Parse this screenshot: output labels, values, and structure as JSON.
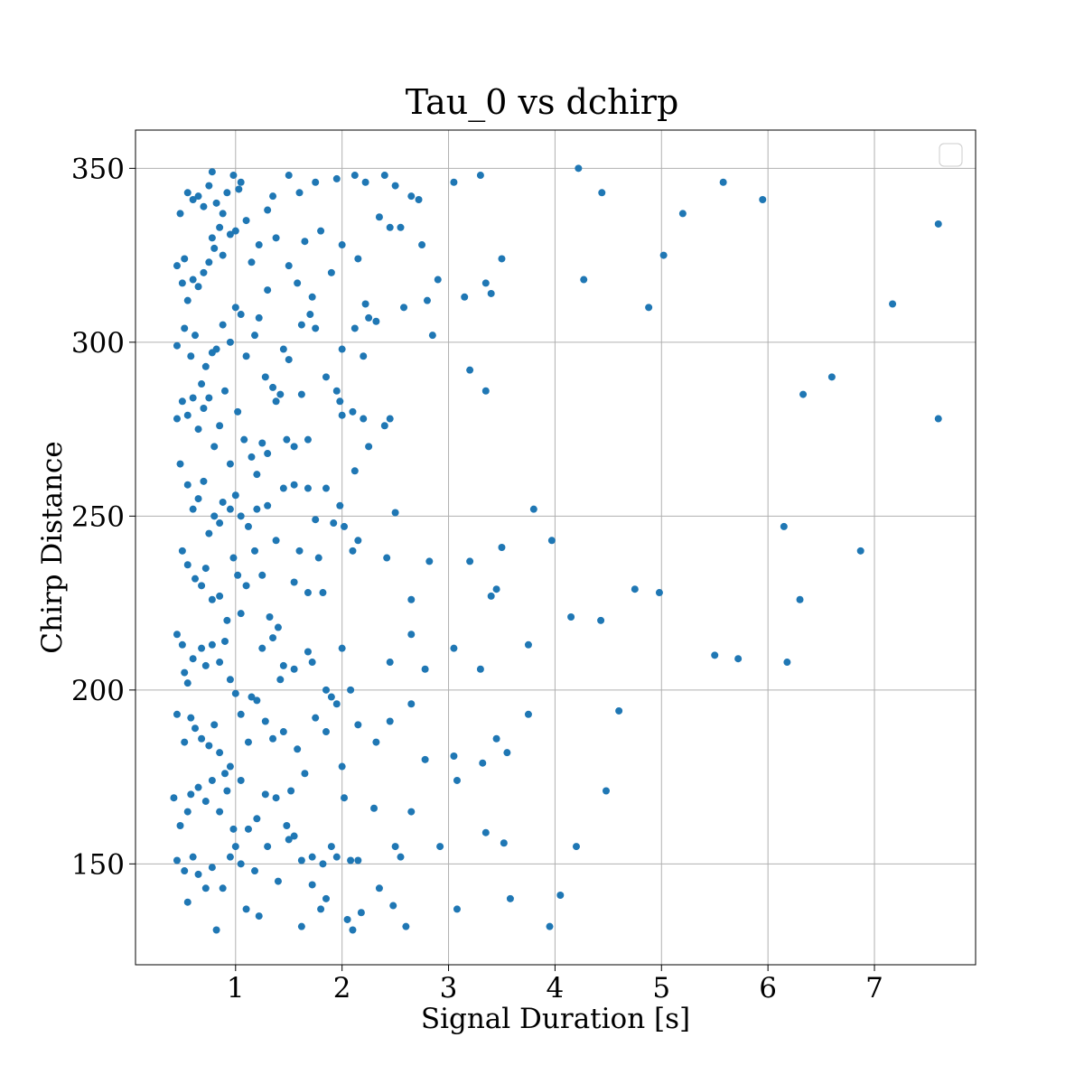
{
  "chart_data": {
    "type": "scatter",
    "title": "Tau_0 vs dchirp",
    "xlabel": "Signal Duration [s]",
    "ylabel": "Chirp Distance",
    "xlim": [
      0.06,
      7.95
    ],
    "ylim": [
      121,
      361
    ],
    "xticks": [
      1,
      2,
      3,
      4,
      5,
      6,
      7
    ],
    "yticks": [
      150,
      200,
      250,
      300,
      350
    ],
    "grid": true,
    "legend": "top-right, empty",
    "color": "#1f77b4",
    "points": [
      [
        0.48,
        337
      ],
      [
        0.45,
        322
      ],
      [
        0.52,
        324
      ],
      [
        0.55,
        343
      ],
      [
        0.6,
        341
      ],
      [
        0.65,
        342
      ],
      [
        0.7,
        339
      ],
      [
        0.75,
        345
      ],
      [
        0.78,
        349
      ],
      [
        0.82,
        340
      ],
      [
        0.88,
        337
      ],
      [
        0.92,
        343
      ],
      [
        0.98,
        348
      ],
      [
        1.05,
        346
      ],
      [
        1.03,
        344
      ],
      [
        1.3,
        338
      ],
      [
        1.35,
        342
      ],
      [
        1.5,
        348
      ],
      [
        1.6,
        343
      ],
      [
        1.75,
        346
      ],
      [
        1.95,
        347
      ],
      [
        2.12,
        348
      ],
      [
        2.22,
        346
      ],
      [
        2.4,
        348
      ],
      [
        2.5,
        345
      ],
      [
        2.65,
        342
      ],
      [
        2.72,
        341
      ],
      [
        3.05,
        346
      ],
      [
        3.3,
        348
      ],
      [
        4.22,
        350
      ],
      [
        4.44,
        343
      ],
      [
        5.58,
        346
      ],
      [
        5.95,
        341
      ],
      [
        0.5,
        317
      ],
      [
        0.55,
        312
      ],
      [
        0.6,
        318
      ],
      [
        0.65,
        316
      ],
      [
        0.7,
        320
      ],
      [
        0.75,
        323
      ],
      [
        0.78,
        330
      ],
      [
        0.8,
        327
      ],
      [
        0.85,
        333
      ],
      [
        0.88,
        325
      ],
      [
        0.95,
        331
      ],
      [
        1.0,
        332
      ],
      [
        1.1,
        335
      ],
      [
        1.15,
        323
      ],
      [
        1.22,
        328
      ],
      [
        1.3,
        315
      ],
      [
        1.38,
        330
      ],
      [
        1.5,
        322
      ],
      [
        1.58,
        317
      ],
      [
        1.65,
        329
      ],
      [
        1.72,
        313
      ],
      [
        1.8,
        332
      ],
      [
        1.9,
        320
      ],
      [
        2.0,
        328
      ],
      [
        2.15,
        324
      ],
      [
        2.22,
        311
      ],
      [
        2.35,
        336
      ],
      [
        2.45,
        333
      ],
      [
        2.55,
        333
      ],
      [
        2.75,
        328
      ],
      [
        2.8,
        312
      ],
      [
        2.9,
        318
      ],
      [
        3.15,
        313
      ],
      [
        3.35,
        317
      ],
      [
        3.4,
        314
      ],
      [
        3.5,
        324
      ],
      [
        4.27,
        318
      ],
      [
        4.88,
        310
      ],
      [
        5.02,
        325
      ],
      [
        5.2,
        337
      ],
      [
        7.6,
        334
      ],
      [
        7.17,
        311
      ],
      [
        0.45,
        299
      ],
      [
        0.52,
        304
      ],
      [
        0.58,
        296
      ],
      [
        0.62,
        302
      ],
      [
        0.68,
        288
      ],
      [
        0.72,
        293
      ],
      [
        0.78,
        297
      ],
      [
        0.82,
        298
      ],
      [
        0.88,
        305
      ],
      [
        0.95,
        300
      ],
      [
        1.0,
        310
      ],
      [
        1.05,
        308
      ],
      [
        1.1,
        296
      ],
      [
        1.18,
        302
      ],
      [
        1.22,
        307
      ],
      [
        1.28,
        290
      ],
      [
        1.35,
        287
      ],
      [
        1.45,
        298
      ],
      [
        1.5,
        295
      ],
      [
        1.62,
        305
      ],
      [
        1.7,
        308
      ],
      [
        1.75,
        304
      ],
      [
        1.85,
        290
      ],
      [
        2.0,
        298
      ],
      [
        2.12,
        304
      ],
      [
        2.2,
        296
      ],
      [
        2.25,
        307
      ],
      [
        2.32,
        306
      ],
      [
        2.58,
        310
      ],
      [
        2.85,
        302
      ],
      [
        3.2,
        292
      ],
      [
        3.35,
        286
      ],
      [
        6.6,
        290
      ],
      [
        6.33,
        285
      ],
      [
        7.6,
        278
      ],
      [
        0.45,
        278
      ],
      [
        0.5,
        283
      ],
      [
        0.55,
        279
      ],
      [
        0.6,
        284
      ],
      [
        0.65,
        275
      ],
      [
        0.7,
        281
      ],
      [
        0.75,
        284
      ],
      [
        0.8,
        270
      ],
      [
        0.85,
        276
      ],
      [
        0.9,
        286
      ],
      [
        0.95,
        265
      ],
      [
        1.02,
        280
      ],
      [
        1.08,
        272
      ],
      [
        1.15,
        267
      ],
      [
        1.2,
        262
      ],
      [
        1.25,
        271
      ],
      [
        1.3,
        268
      ],
      [
        1.38,
        283
      ],
      [
        1.42,
        285
      ],
      [
        1.48,
        272
      ],
      [
        1.55,
        270
      ],
      [
        1.62,
        285
      ],
      [
        1.68,
        272
      ],
      [
        1.95,
        286
      ],
      [
        1.98,
        283
      ],
      [
        2.0,
        279
      ],
      [
        2.1,
        280
      ],
      [
        2.2,
        278
      ],
      [
        2.25,
        270
      ],
      [
        2.4,
        276
      ],
      [
        2.45,
        278
      ],
      [
        2.12,
        263
      ],
      [
        0.48,
        265
      ],
      [
        0.55,
        259
      ],
      [
        0.6,
        252
      ],
      [
        0.65,
        255
      ],
      [
        0.7,
        260
      ],
      [
        0.75,
        245
      ],
      [
        0.8,
        250
      ],
      [
        0.85,
        248
      ],
      [
        0.88,
        254
      ],
      [
        0.95,
        252
      ],
      [
        1.0,
        256
      ],
      [
        1.05,
        250
      ],
      [
        1.12,
        247
      ],
      [
        1.2,
        252
      ],
      [
        1.3,
        253
      ],
      [
        1.38,
        243
      ],
      [
        1.45,
        258
      ],
      [
        1.55,
        259
      ],
      [
        1.68,
        258
      ],
      [
        1.75,
        249
      ],
      [
        1.85,
        258
      ],
      [
        1.92,
        248
      ],
      [
        1.98,
        253
      ],
      [
        2.02,
        247
      ],
      [
        2.15,
        243
      ],
      [
        2.5,
        251
      ],
      [
        3.8,
        252
      ],
      [
        3.97,
        243
      ],
      [
        6.15,
        247
      ],
      [
        6.87,
        240
      ],
      [
        0.5,
        240
      ],
      [
        0.55,
        236
      ],
      [
        0.62,
        232
      ],
      [
        0.68,
        230
      ],
      [
        0.72,
        235
      ],
      [
        0.78,
        226
      ],
      [
        0.85,
        227
      ],
      [
        0.92,
        220
      ],
      [
        0.98,
        238
      ],
      [
        1.02,
        233
      ],
      [
        1.1,
        230
      ],
      [
        1.18,
        240
      ],
      [
        1.25,
        233
      ],
      [
        1.32,
        221
      ],
      [
        1.4,
        218
      ],
      [
        1.45,
        207
      ],
      [
        1.55,
        231
      ],
      [
        1.6,
        240
      ],
      [
        1.68,
        228
      ],
      [
        1.78,
        238
      ],
      [
        1.82,
        228
      ],
      [
        2.1,
        240
      ],
      [
        2.42,
        238
      ],
      [
        2.65,
        226
      ],
      [
        2.82,
        237
      ],
      [
        3.2,
        237
      ],
      [
        3.4,
        227
      ],
      [
        3.45,
        229
      ],
      [
        3.5,
        241
      ],
      [
        4.15,
        221
      ],
      [
        4.43,
        220
      ],
      [
        4.75,
        229
      ],
      [
        4.98,
        228
      ],
      [
        6.3,
        226
      ],
      [
        0.45,
        216
      ],
      [
        0.5,
        213
      ],
      [
        0.52,
        205
      ],
      [
        0.55,
        202
      ],
      [
        0.6,
        209
      ],
      [
        0.68,
        212
      ],
      [
        0.72,
        207
      ],
      [
        0.78,
        213
      ],
      [
        0.85,
        208
      ],
      [
        0.9,
        214
      ],
      [
        0.95,
        203
      ],
      [
        1.05,
        222
      ],
      [
        1.15,
        198
      ],
      [
        1.25,
        212
      ],
      [
        1.35,
        215
      ],
      [
        1.42,
        203
      ],
      [
        1.55,
        206
      ],
      [
        1.68,
        211
      ],
      [
        1.72,
        208
      ],
      [
        1.85,
        200
      ],
      [
        1.9,
        198
      ],
      [
        2.0,
        212
      ],
      [
        2.08,
        200
      ],
      [
        2.45,
        208
      ],
      [
        2.65,
        216
      ],
      [
        2.78,
        206
      ],
      [
        3.05,
        212
      ],
      [
        3.3,
        206
      ],
      [
        3.75,
        213
      ],
      [
        5.5,
        210
      ],
      [
        5.72,
        209
      ],
      [
        6.18,
        208
      ],
      [
        0.45,
        193
      ],
      [
        0.52,
        185
      ],
      [
        0.58,
        192
      ],
      [
        0.62,
        189
      ],
      [
        0.68,
        186
      ],
      [
        0.75,
        184
      ],
      [
        0.8,
        190
      ],
      [
        0.85,
        182
      ],
      [
        0.9,
        176
      ],
      [
        0.95,
        178
      ],
      [
        1.0,
        199
      ],
      [
        1.05,
        193
      ],
      [
        1.12,
        185
      ],
      [
        1.2,
        197
      ],
      [
        1.28,
        191
      ],
      [
        1.35,
        186
      ],
      [
        1.45,
        188
      ],
      [
        1.52,
        171
      ],
      [
        1.58,
        183
      ],
      [
        1.65,
        176
      ],
      [
        1.75,
        192
      ],
      [
        1.85,
        188
      ],
      [
        1.95,
        196
      ],
      [
        2.0,
        178
      ],
      [
        2.15,
        190
      ],
      [
        2.32,
        185
      ],
      [
        2.45,
        191
      ],
      [
        2.65,
        196
      ],
      [
        2.78,
        180
      ],
      [
        3.05,
        181
      ],
      [
        3.32,
        179
      ],
      [
        3.45,
        186
      ],
      [
        3.55,
        182
      ],
      [
        3.75,
        193
      ],
      [
        4.48,
        171
      ],
      [
        4.6,
        194
      ],
      [
        0.42,
        169
      ],
      [
        0.48,
        161
      ],
      [
        0.55,
        165
      ],
      [
        0.58,
        170
      ],
      [
        0.65,
        172
      ],
      [
        0.72,
        168
      ],
      [
        0.78,
        174
      ],
      [
        0.85,
        165
      ],
      [
        0.92,
        171
      ],
      [
        0.98,
        160
      ],
      [
        1.05,
        174
      ],
      [
        1.12,
        160
      ],
      [
        1.2,
        163
      ],
      [
        1.28,
        170
      ],
      [
        1.38,
        169
      ],
      [
        1.48,
        161
      ],
      [
        1.55,
        158
      ],
      [
        1.62,
        151
      ],
      [
        1.72,
        152
      ],
      [
        1.82,
        150
      ],
      [
        1.95,
        152
      ],
      [
        2.02,
        169
      ],
      [
        2.08,
        151
      ],
      [
        2.15,
        151
      ],
      [
        2.3,
        166
      ],
      [
        2.5,
        155
      ],
      [
        2.65,
        165
      ],
      [
        2.92,
        155
      ],
      [
        3.08,
        174
      ],
      [
        3.35,
        159
      ],
      [
        3.52,
        156
      ],
      [
        4.2,
        155
      ],
      [
        0.45,
        151
      ],
      [
        0.52,
        148
      ],
      [
        0.55,
        139
      ],
      [
        0.6,
        152
      ],
      [
        0.65,
        147
      ],
      [
        0.72,
        143
      ],
      [
        0.78,
        149
      ],
      [
        0.82,
        131
      ],
      [
        0.88,
        143
      ],
      [
        0.95,
        152
      ],
      [
        1.0,
        155
      ],
      [
        1.05,
        150
      ],
      [
        1.1,
        137
      ],
      [
        1.18,
        148
      ],
      [
        1.22,
        135
      ],
      [
        1.3,
        155
      ],
      [
        1.4,
        145
      ],
      [
        1.5,
        157
      ],
      [
        1.62,
        132
      ],
      [
        1.72,
        144
      ],
      [
        1.8,
        137
      ],
      [
        1.85,
        140
      ],
      [
        1.9,
        155
      ],
      [
        2.05,
        134
      ],
      [
        2.1,
        131
      ],
      [
        2.18,
        136
      ],
      [
        2.35,
        143
      ],
      [
        2.48,
        138
      ],
      [
        2.55,
        152
      ],
      [
        2.6,
        132
      ],
      [
        3.08,
        137
      ],
      [
        3.58,
        140
      ],
      [
        3.95,
        132
      ],
      [
        4.05,
        141
      ]
    ]
  }
}
